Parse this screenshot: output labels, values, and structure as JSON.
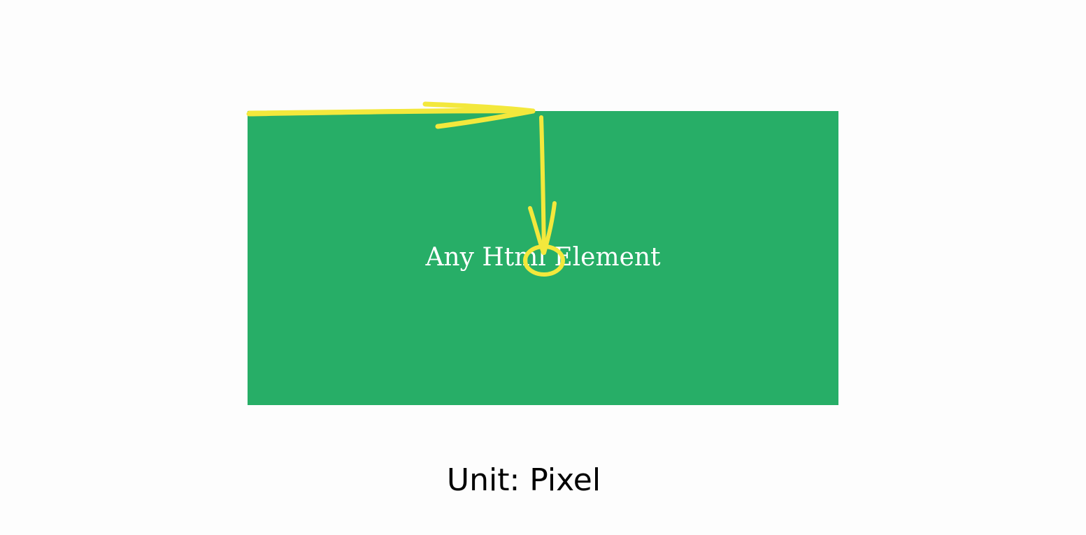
{
  "box": {
    "label": "Any Html Element",
    "fill_color": "#27ae67",
    "label_color": "#ffffff"
  },
  "annotation": {
    "stroke_color": "#f3e83c",
    "icons": [
      "arrow-right-icon",
      "arrow-down-icon",
      "circle-marker-icon"
    ]
  },
  "caption": {
    "text": "Unit: Pixel"
  }
}
